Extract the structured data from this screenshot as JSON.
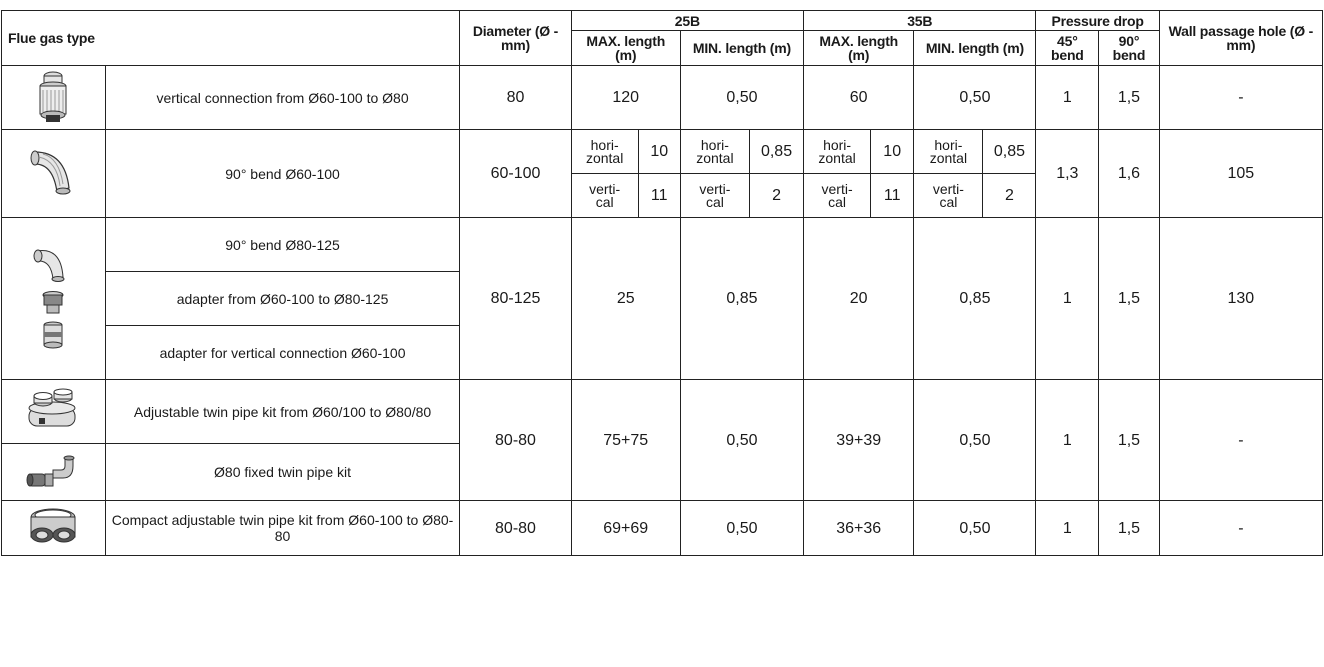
{
  "header": {
    "flue_gas_type": "Flue gas type",
    "diameter": "Diameter (Ø - mm)",
    "group_25b": "25B",
    "group_35b": "35B",
    "pressure_drop": "Pressure drop",
    "wall_passage": "Wall passage hole (Ø - mm)",
    "max_length": "MAX. length (m)",
    "min_length": "MIN. length (m)",
    "bend_45": "45° bend",
    "bend_90": "90° bend"
  },
  "rows": {
    "r1": {
      "icon": "vertical-connector-icon",
      "desc": "vertical connection from Ø60-100 to Ø80",
      "diameter": "80",
      "max25": "120",
      "min25": "0,50",
      "max35": "60",
      "min35": "0,50",
      "b45": "1",
      "b90": "1,5",
      "hole": "-"
    },
    "r2": {
      "icon": "bend-90-icon",
      "desc": "90° bend Ø60-100",
      "diameter": "60-100",
      "horizontal": "hori-\nzontal",
      "vertical": "verti-\ncal",
      "max25_h": "10",
      "max25_v": "11",
      "min25_h": "0,85",
      "min25_v": "2",
      "max35_h": "10",
      "max35_v": "11",
      "min35_h": "0,85",
      "min35_v": "2",
      "b45": "1,3",
      "b90": "1,6",
      "hole": "105"
    },
    "r3": {
      "icon": "bend-and-adapters-icon",
      "desc_a": "90° bend Ø80-125",
      "desc_b": "adapter from Ø60-100 to Ø80-125",
      "desc_c": "adapter for vertical connection Ø60-100",
      "diameter": "80-125",
      "max25": "25",
      "min25": "0,85",
      "max35": "20",
      "min35": "0,85",
      "b45": "1",
      "b90": "1,5",
      "hole": "130"
    },
    "r4": {
      "icon_a": "adjustable-twin-pipe-kit-icon",
      "icon_b": "fixed-twin-pipe-kit-icon",
      "desc_a": "Adjustable twin pipe kit from Ø60/100 to Ø80/80",
      "desc_b": "Ø80 fixed twin pipe kit",
      "diameter": "80-80",
      "max25": "75+75",
      "min25": "0,50",
      "max35": "39+39",
      "min35": "0,50",
      "b45": "1",
      "b90": "1,5",
      "hole": "-"
    },
    "r5": {
      "icon": "compact-twin-pipe-kit-icon",
      "desc": "Compact adjustable twin pipe kit from Ø60-100 to Ø80-80",
      "diameter": "80-80",
      "max25": "69+69",
      "min25": "0,50",
      "max35": "36+36",
      "min35": "0,50",
      "b45": "1",
      "b90": "1,5",
      "hole": "-"
    }
  }
}
